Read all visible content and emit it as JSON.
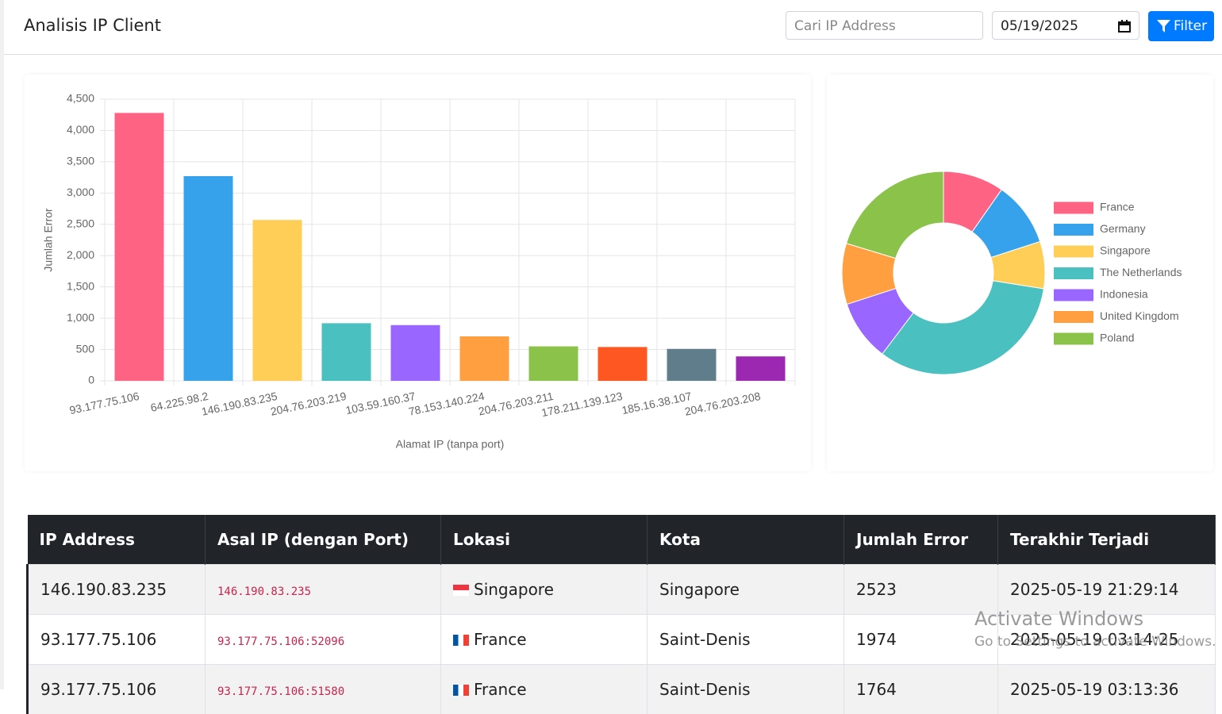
{
  "header": {
    "title": "Analisis IP Client",
    "search_placeholder": "Cari IP Address",
    "date": "05/19/2025",
    "button": "Filter"
  },
  "chart_data": [
    {
      "type": "bar",
      "categories": [
        "93.177.75.106",
        "64.225.98.2",
        "146.190.83.235",
        "204.76.203.219",
        "103.59.160.37",
        "78.153.140.224",
        "204.76.203.211",
        "178.211.139.123",
        "185.16.38.107",
        "204.76.203.208"
      ],
      "values": [
        4280,
        3270,
        2570,
        920,
        890,
        710,
        550,
        540,
        510,
        390
      ],
      "colors": [
        "#ff6384",
        "#36a2eb",
        "#ffce56",
        "#4bc0c0",
        "#9966ff",
        "#ff9f40",
        "#8bc34a",
        "#ff5722",
        "#607d8b",
        "#9c27b0"
      ],
      "ylim": [
        0,
        4500
      ],
      "yticks": [
        0,
        500,
        {
          "value": 1000,
          "label": "1,000"
        },
        {
          "value": 1500,
          "label": "1,500"
        },
        {
          "value": 2000,
          "label": "2,000"
        },
        {
          "value": 2500,
          "label": "2,500"
        },
        {
          "value": 3000,
          "label": "3,000"
        },
        {
          "value": 3500,
          "label": "3,500"
        },
        {
          "value": 4000,
          "label": "4,000"
        },
        {
          "value": 4500,
          "label": "4,500"
        }
      ],
      "y_label": "Jumlah Error",
      "x_label": "Alamat IP (tanpa port)",
      "grid": true
    },
    {
      "type": "doughnut",
      "categories": [
        "France",
        "Germany",
        "Singapore",
        "The Netherlands",
        "Indonesia",
        "United Kingdom",
        "Poland"
      ],
      "values": [
        9.7,
        10.3,
        7.5,
        32.8,
        9.7,
        9.7,
        20.3
      ],
      "colors": [
        "#ff6384",
        "#36a2eb",
        "#ffce56",
        "#4bc0c0",
        "#9966ff",
        "#ff9f40",
        "#8bc34a"
      ],
      "legend": "right"
    }
  ],
  "table": {
    "columns": [
      "IP Address",
      "Asal IP (dengan Port)",
      "Lokasi",
      "Kota",
      "Jumlah Error",
      "Terakhir Terjadi"
    ],
    "rows": [
      [
        "146.190.83.235",
        "146.190.83.235",
        "Singapore",
        "Singapore",
        "2523",
        "2025-05-19 21:29:14"
      ],
      [
        "93.177.75.106",
        "93.177.75.106:52096",
        "France",
        "Saint-Denis",
        "1974",
        "2025-05-19 03:14:25"
      ],
      [
        "93.177.75.106",
        "93.177.75.106:51580",
        "France",
        "Saint-Denis",
        "1764",
        "2025-05-19 03:13:36"
      ]
    ]
  },
  "watermark": {
    "title": "Activate Windows",
    "text": "Go to Settings to activate Windows."
  }
}
